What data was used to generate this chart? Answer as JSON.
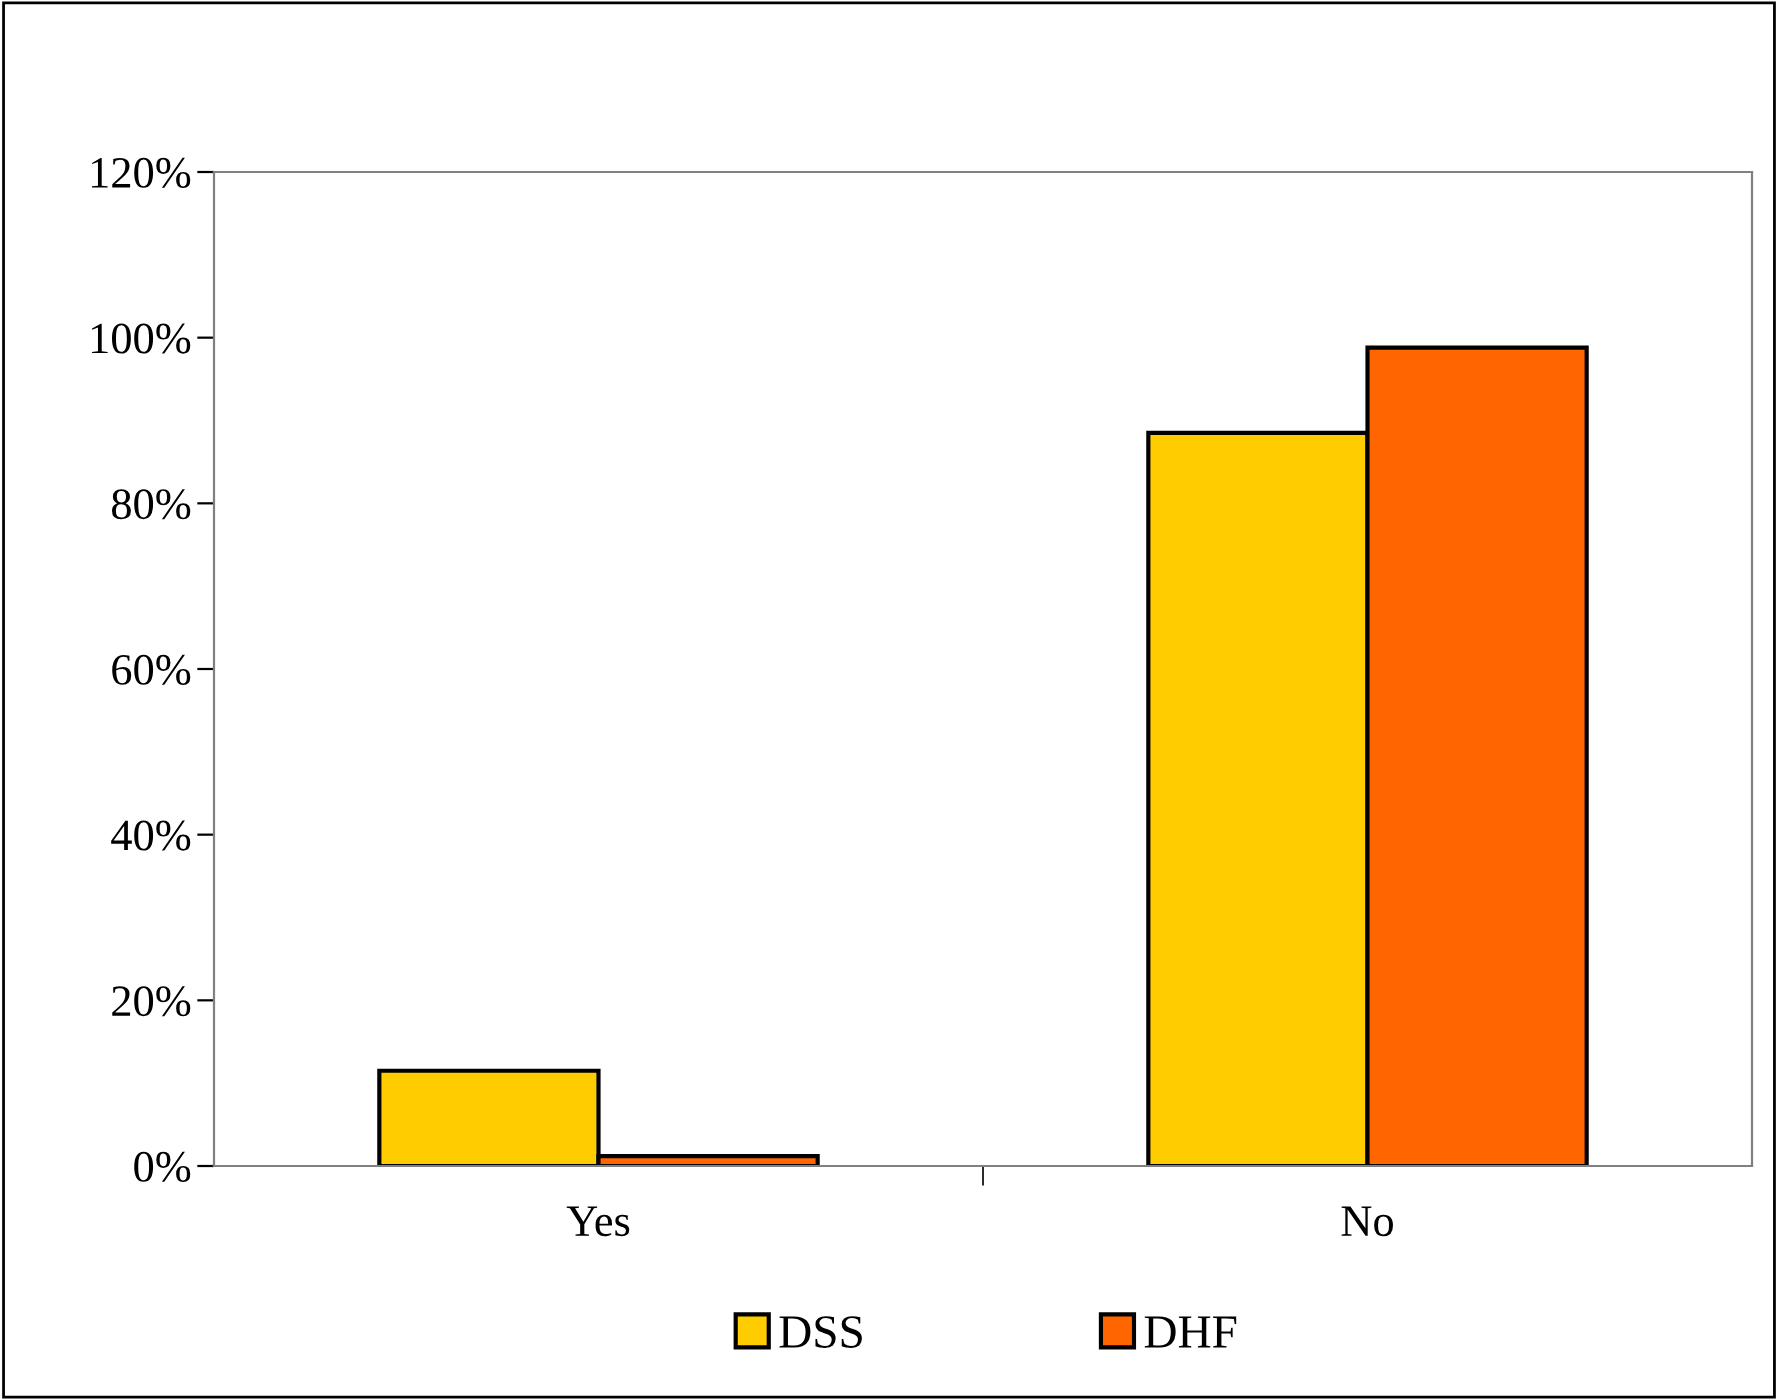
{
  "chart_data": {
    "type": "bar",
    "categories": [
      "Yes",
      "No"
    ],
    "series": [
      {
        "name": "DSS",
        "color": "#ffcc00",
        "values": [
          11.5,
          88.5
        ]
      },
      {
        "name": "DHF",
        "color": "#ff6600",
        "values": [
          1.2,
          98.8
        ]
      }
    ],
    "ylim": [
      0,
      120
    ],
    "yticks": [
      {
        "value": 0,
        "label": "0%"
      },
      {
        "value": 20,
        "label": "20%"
      },
      {
        "value": 40,
        "label": "40%"
      },
      {
        "value": 60,
        "label": "60%"
      },
      {
        "value": 80,
        "label": "80%"
      },
      {
        "value": 100,
        "label": "100%"
      },
      {
        "value": 120,
        "label": "120%"
      }
    ],
    "grid": false,
    "legend": "bottom"
  }
}
